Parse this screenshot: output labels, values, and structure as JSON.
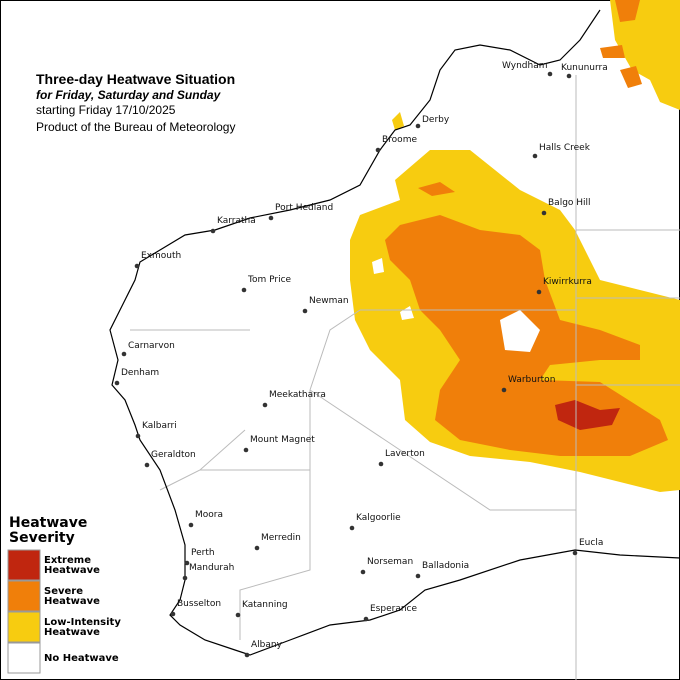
{
  "header": {
    "title": "Three-day Heatwave Situation",
    "subtitle": "for Friday, Saturday and Sunday",
    "date": "starting Friday 17/10/2025",
    "product": "Product of the Bureau of Meteorology"
  },
  "towns": [
    "Wyndham",
    "Kununurra",
    "Derby",
    "Broome",
    "Halls Creek",
    "Balgo Hill",
    "Port Hedland",
    "Karratha",
    "Exmouth",
    "Tom Price",
    "Newman",
    "Kiwirrkurra",
    "Carnarvon",
    "Denham",
    "Warburton",
    "Meekatharra",
    "Kalbarri",
    "Mount Magnet",
    "Laverton",
    "Geraldton",
    "Moora",
    "Kalgoorlie",
    "Perth",
    "Merredin",
    "Mandurah",
    "Norseman",
    "Balladonia",
    "Eucla",
    "Busselton",
    "Katanning",
    "Esperance",
    "Albany"
  ],
  "legend": {
    "title": [
      "Heatwave",
      "Severity"
    ],
    "items": [
      {
        "label": [
          "Extreme",
          "Heatwave"
        ],
        "color": "#c0260f"
      },
      {
        "label": [
          "Severe",
          "Heatwave"
        ],
        "color": "#f07f0a"
      },
      {
        "label": [
          "Low-Intensity",
          "Heatwave"
        ],
        "color": "#f7cc10"
      },
      {
        "label": [
          "No Heatwave"
        ],
        "color": "#ffffff"
      }
    ]
  }
}
